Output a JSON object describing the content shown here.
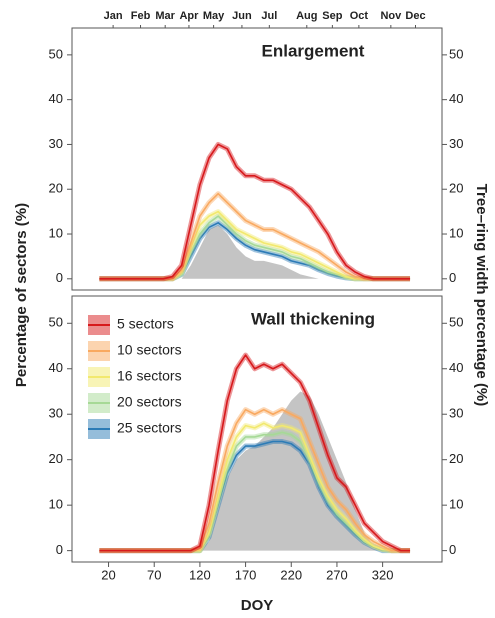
{
  "chart_data": [
    {
      "type": "line",
      "title": "Enlargement",
      "ylabel": "Percentage of sectors (%)",
      "y2label": "Tree–ring width percentage (%)",
      "x": [
        10,
        20,
        30,
        40,
        50,
        60,
        70,
        80,
        90,
        100,
        110,
        120,
        130,
        140,
        150,
        160,
        170,
        180,
        190,
        200,
        210,
        220,
        230,
        240,
        250,
        260,
        270,
        280,
        290,
        300,
        310,
        320,
        330,
        340,
        350
      ],
      "xlim": [
        -20,
        385
      ],
      "x2ticks": [
        {
          "value": 25,
          "label": "Jan"
        },
        {
          "value": 55,
          "label": "Feb"
        },
        {
          "value": 82,
          "label": "Mar"
        },
        {
          "value": 108,
          "label": "Apr"
        },
        {
          "value": 135,
          "label": "May"
        },
        {
          "value": 166,
          "label": "Jun"
        },
        {
          "value": 196,
          "label": "Jul"
        },
        {
          "value": 237,
          "label": "Aug"
        },
        {
          "value": 265,
          "label": "Sep"
        },
        {
          "value": 294,
          "label": "Oct"
        },
        {
          "value": 329,
          "label": "Nov"
        },
        {
          "value": 356,
          "label": "Dec"
        }
      ],
      "ylim": [
        -2.5,
        56
      ],
      "yticks": [
        0,
        10,
        20,
        30,
        40,
        50
      ],
      "y2lim": [
        -2.5,
        56
      ],
      "y2ticks": [
        0,
        10,
        20,
        30,
        40,
        50
      ],
      "series": [
        {
          "name": "5 sectors",
          "color": "#d7191c",
          "values": [
            0,
            0,
            0,
            0,
            0,
            0,
            0,
            0,
            0.5,
            3,
            12,
            21,
            27,
            30,
            29,
            25,
            23,
            23,
            22,
            22,
            21,
            20,
            18,
            16,
            13,
            10,
            6,
            3,
            1.5,
            0.5,
            0,
            0,
            0,
            0,
            0
          ]
        },
        {
          "name": "10 sectors",
          "color": "#f9a960",
          "values": [
            0,
            0,
            0,
            0,
            0,
            0,
            0,
            0,
            0,
            2,
            8,
            14,
            17,
            19,
            17,
            15,
            13,
            12,
            11,
            11,
            10,
            9,
            8,
            7,
            6,
            4.5,
            3,
            1.5,
            0.5,
            0,
            0,
            0,
            0,
            0,
            0
          ]
        },
        {
          "name": "16 sectors",
          "color": "#f2e96e",
          "values": [
            0,
            0,
            0,
            0,
            0,
            0,
            0,
            0,
            0,
            1.5,
            7,
            12,
            14,
            15,
            13,
            11,
            10,
            9,
            8,
            7.5,
            7,
            6,
            5.5,
            4.5,
            3.5,
            2.5,
            1.5,
            0.5,
            0,
            0,
            0,
            0,
            0,
            0,
            0
          ]
        },
        {
          "name": "20 sectors",
          "color": "#a6d996",
          "values": [
            0,
            0,
            0,
            0,
            0,
            0,
            0,
            0,
            0,
            1,
            6,
            10,
            12.5,
            14,
            12,
            10,
            8.5,
            7.5,
            7,
            6.5,
            6,
            5,
            4.5,
            3.5,
            2.5,
            1.5,
            1,
            0.3,
            0,
            0,
            0,
            0,
            0,
            0,
            0
          ]
        },
        {
          "name": "25 sectors",
          "color": "#2c7bb6",
          "values": [
            0,
            0,
            0,
            0,
            0,
            0,
            0,
            0,
            0,
            1,
            5,
            9,
            11.5,
            12.5,
            11,
            9,
            7.5,
            6.5,
            6,
            5.5,
            5,
            4,
            3.5,
            3,
            2,
            1.2,
            0.6,
            0.2,
            0,
            0,
            0,
            0,
            0,
            0,
            0
          ]
        },
        {
          "kind": "area",
          "axis": "y2",
          "color": "#c4c4c4",
          "values": [
            0,
            0,
            0,
            0,
            0,
            0,
            0,
            0,
            0,
            0,
            3,
            7,
            11,
            12,
            10,
            7,
            5,
            4,
            4,
            3.5,
            3,
            2,
            1,
            0.5,
            0,
            0,
            0,
            0,
            0,
            0,
            0,
            0,
            0,
            0,
            0
          ]
        }
      ]
    },
    {
      "type": "line",
      "title": "Wall thickening",
      "xlabel": "DOY",
      "x": [
        10,
        20,
        30,
        40,
        50,
        60,
        70,
        80,
        90,
        100,
        110,
        120,
        130,
        140,
        150,
        160,
        170,
        180,
        190,
        200,
        210,
        220,
        230,
        240,
        250,
        260,
        270,
        280,
        290,
        300,
        310,
        320,
        330,
        340,
        350
      ],
      "xlim": [
        -20,
        385
      ],
      "xticks": [
        20,
        70,
        120,
        170,
        220,
        270,
        320
      ],
      "ylim": [
        -2.5,
        56
      ],
      "yticks": [
        0,
        10,
        20,
        30,
        40,
        50
      ],
      "y2lim": [
        -2.5,
        56
      ],
      "y2ticks": [
        0,
        10,
        20,
        30,
        40,
        50
      ],
      "legend": "upper left",
      "series": [
        {
          "name": "5 sectors",
          "color": "#d7191c",
          "values": [
            0,
            0,
            0,
            0,
            0,
            0,
            0,
            0,
            0,
            0,
            0,
            1,
            10,
            22,
            33,
            40,
            43,
            40,
            41,
            40,
            41,
            39,
            37,
            33,
            27,
            21,
            16,
            14,
            10,
            6,
            4,
            2,
            1,
            0,
            0
          ]
        },
        {
          "name": "10 sectors",
          "color": "#f9a960",
          "values": [
            0,
            0,
            0,
            0,
            0,
            0,
            0,
            0,
            0,
            0,
            0,
            0.5,
            6,
            15,
            23,
            28,
            31,
            30,
            31,
            30,
            31,
            30,
            29,
            24,
            19,
            14,
            11,
            9,
            6,
            3.5,
            2,
            1,
            0,
            0,
            0
          ]
        },
        {
          "name": "16 sectors",
          "color": "#f2e96e",
          "values": [
            0,
            0,
            0,
            0,
            0,
            0,
            0,
            0,
            0,
            0,
            0,
            0,
            4,
            12,
            20,
            25,
            27.5,
            27,
            28,
            27,
            27.5,
            27,
            26,
            21,
            16,
            12,
            9,
            7,
            4.5,
            2.5,
            1,
            0.3,
            0,
            0,
            0
          ]
        },
        {
          "name": "20 sectors",
          "color": "#a6d996",
          "values": [
            0,
            0,
            0,
            0,
            0,
            0,
            0,
            0,
            0,
            0,
            0,
            0,
            3.5,
            11,
            18,
            23,
            25,
            25,
            25.5,
            25.5,
            26,
            25.5,
            24,
            20,
            15,
            11,
            8,
            6,
            4,
            2,
            1,
            0.2,
            0,
            0,
            0
          ]
        },
        {
          "name": "25 sectors",
          "color": "#2c7bb6",
          "values": [
            0,
            0,
            0,
            0,
            0,
            0,
            0,
            0,
            0,
            0,
            0,
            0,
            3,
            10,
            17,
            21,
            23,
            23,
            23.5,
            24,
            24,
            23.5,
            22,
            19,
            14,
            10,
            7.5,
            5.5,
            3.5,
            1.8,
            0.8,
            0,
            0,
            0,
            0
          ]
        },
        {
          "kind": "area",
          "axis": "y2",
          "color": "#c4c4c4",
          "values": [
            0,
            0,
            0,
            0,
            0,
            0,
            0,
            0,
            0,
            0,
            0,
            0,
            2,
            9,
            16,
            20,
            22,
            23,
            25,
            27,
            30,
            33,
            35,
            34,
            30,
            25,
            20,
            15,
            9,
            4,
            1,
            0,
            0,
            0,
            0
          ]
        }
      ]
    }
  ]
}
